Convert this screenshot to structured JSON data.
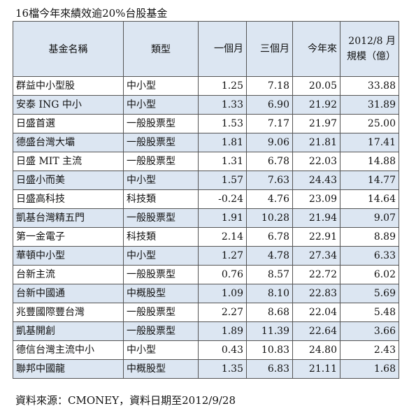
{
  "title": "16檔今年來績效逾20%台股基金",
  "headers": {
    "name": "基金名稱",
    "type": "類型",
    "m1": "一個月",
    "m3": "三個月",
    "ytd": "今年來",
    "size_line1": "2012/8 月",
    "size_line2": "規模（億）"
  },
  "rows": [
    {
      "name": "群益中小型股",
      "type": "中小型",
      "m1": "1.25",
      "m3": "7.18",
      "ytd": "20.05",
      "size": "33.88"
    },
    {
      "name": "安泰 ING 中小",
      "type": "中小型",
      "m1": "1.33",
      "m3": "6.90",
      "ytd": "21.92",
      "size": "31.89"
    },
    {
      "name": "日盛首選",
      "type": "一般股票型",
      "m1": "1.53",
      "m3": "7.17",
      "ytd": "21.97",
      "size": "25.00"
    },
    {
      "name": "德盛台灣大壩",
      "type": "一般股票型",
      "m1": "1.81",
      "m3": "9.06",
      "ytd": "21.81",
      "size": "17.41"
    },
    {
      "name": "日盛 MIT 主流",
      "type": "一般股票型",
      "m1": "1.31",
      "m3": "6.78",
      "ytd": "22.03",
      "size": "14.88"
    },
    {
      "name": "日盛小而美",
      "type": "中小型",
      "m1": "1.57",
      "m3": "7.63",
      "ytd": "24.43",
      "size": "14.77"
    },
    {
      "name": "日盛高科技",
      "type": "科技類",
      "m1": "-0.24",
      "m3": "4.76",
      "ytd": "23.09",
      "size": "14.64"
    },
    {
      "name": "凱基台灣精五門",
      "type": "一般股票型",
      "m1": "1.91",
      "m3": "10.28",
      "ytd": "21.94",
      "size": "9.07"
    },
    {
      "name": "第一金電子",
      "type": "科技類",
      "m1": "2.14",
      "m3": "6.78",
      "ytd": "22.91",
      "size": "8.89"
    },
    {
      "name": "華頓中小型",
      "type": "中小型",
      "m1": "1.27",
      "m3": "4.78",
      "ytd": "27.34",
      "size": "6.33"
    },
    {
      "name": "台新主流",
      "type": "一般股票型",
      "m1": "0.76",
      "m3": "8.57",
      "ytd": "22.72",
      "size": "6.02"
    },
    {
      "name": "台新中國通",
      "type": "中概股型",
      "m1": "1.09",
      "m3": "8.10",
      "ytd": "22.83",
      "size": "5.69"
    },
    {
      "name": "兆豐國際豐台灣",
      "type": "一般股票型",
      "m1": "2.27",
      "m3": "8.68",
      "ytd": "22.04",
      "size": "5.48"
    },
    {
      "name": "凱基開創",
      "type": "一般股票型",
      "m1": "1.89",
      "m3": "11.39",
      "ytd": "22.64",
      "size": "3.66"
    },
    {
      "name": "德信台灣主流中小",
      "type": "中小型",
      "m1": "0.43",
      "m3": "10.83",
      "ytd": "24.80",
      "size": "2.43"
    },
    {
      "name": "聯邦中國龍",
      "type": "中概股型",
      "m1": "1.35",
      "m3": "6.83",
      "ytd": "21.11",
      "size": "1.68"
    }
  ],
  "footer": "資料來源：CMONEY，資料日期至2012/9/28",
  "colors": {
    "header_bg": "#dce6f2",
    "alt_row_bg": "#dce6f2",
    "border": "#555555"
  }
}
